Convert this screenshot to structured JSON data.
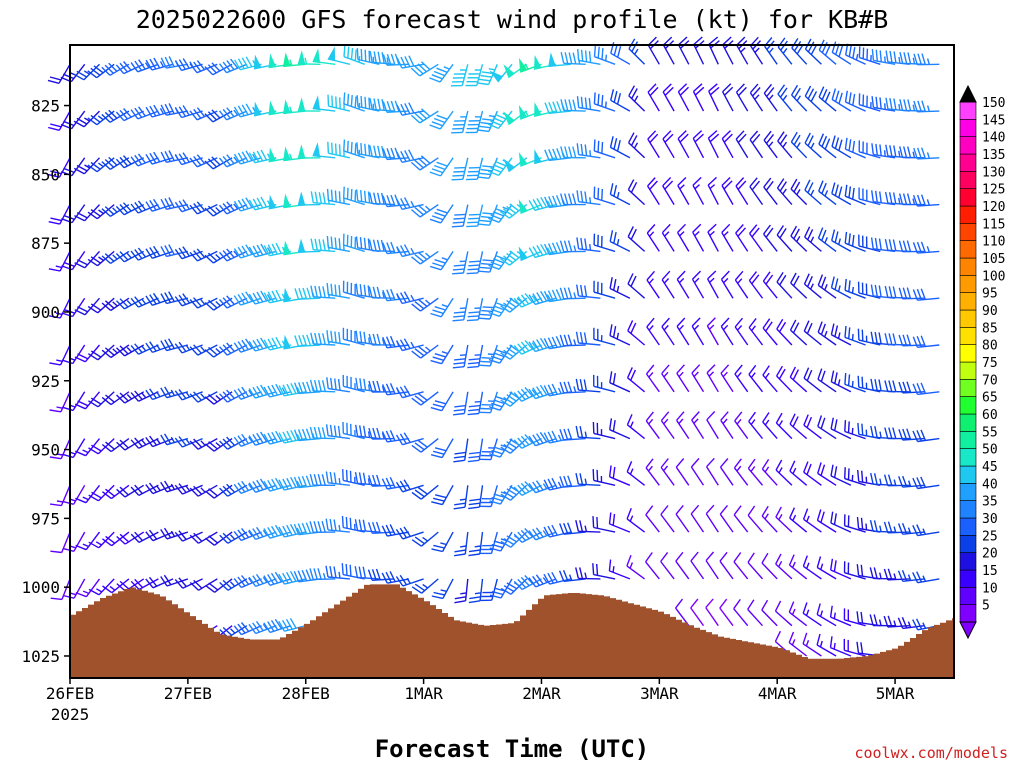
{
  "chart_data": {
    "type": "wind_barb_time_height",
    "title": "2025022600 GFS forecast wind profile (kt) for KB#B",
    "xlabel": "Forecast Time (UTC)",
    "credit": "coolwx.com/models",
    "x_ticks": [
      {
        "label": "26FEB",
        "sublabel": "2025",
        "day": 0
      },
      {
        "label": "27FEB",
        "sublabel": "",
        "day": 1
      },
      {
        "label": "28FEB",
        "sublabel": "",
        "day": 2
      },
      {
        "label": "1MAR",
        "sublabel": "",
        "day": 3
      },
      {
        "label": "2MAR",
        "sublabel": "",
        "day": 4
      },
      {
        "label": "3MAR",
        "sublabel": "",
        "day": 5
      },
      {
        "label": "4MAR",
        "sublabel": "",
        "day": 6
      },
      {
        "label": "5MAR",
        "sublabel": "",
        "day": 7
      }
    ],
    "xlim_days": [
      0,
      7.5
    ],
    "y_ticks": [
      "825",
      "850",
      "875",
      "900",
      "925",
      "950",
      "975",
      "1000",
      "1025"
    ],
    "ylim_hpa": [
      803,
      1033
    ],
    "colorbar": {
      "levels": [
        "5",
        "10",
        "15",
        "20",
        "25",
        "30",
        "35",
        "40",
        "45",
        "50",
        "55",
        "60",
        "65",
        "70",
        "75",
        "80",
        "85",
        "90",
        "95",
        "100",
        "105",
        "110",
        "115",
        "120",
        "125",
        "130",
        "135",
        "140",
        "145",
        "150"
      ],
      "colors": [
        "#8000ff",
        "#6000ff",
        "#3a00ff",
        "#1e10e0",
        "#0b40e8",
        "#1a60ff",
        "#1f82ff",
        "#1fa0ff",
        "#1ec8f0",
        "#18e8c8",
        "#10f0a0",
        "#10f070",
        "#20ff30",
        "#70ff20",
        "#c0ff10",
        "#ffff00",
        "#ffe000",
        "#ffc800",
        "#ffb000",
        "#ff9a00",
        "#ff8400",
        "#ff6a00",
        "#ff4400",
        "#ff1e00",
        "#ff0030",
        "#ff0060",
        "#ff0090",
        "#ff00c0",
        "#ff00e6",
        "#ff40ff"
      ]
    },
    "surface_pressure_hpa": {
      "times_days": [
        0,
        0.25,
        0.5,
        0.75,
        1,
        1.25,
        1.5,
        1.75,
        2,
        2.25,
        2.5,
        2.75,
        3,
        3.25,
        3.5,
        3.75,
        4,
        4.25,
        4.5,
        4.75,
        5,
        5.25,
        5.5,
        5.75,
        6,
        6.25,
        6.5,
        6.75,
        7,
        7.25,
        7.5
      ],
      "values": [
        1010,
        1004,
        1000,
        1003,
        1010,
        1017,
        1019,
        1019,
        1013,
        1006,
        999,
        999,
        1005,
        1012,
        1014,
        1013,
        1003,
        1002,
        1003,
        1006,
        1009,
        1014,
        1018,
        1020,
        1022,
        1026,
        1026,
        1025,
        1022,
        1015,
        1011
      ]
    },
    "wind_levels_hpa": [
      810,
      827,
      844,
      861,
      878,
      895,
      912,
      929,
      946,
      963,
      980,
      997,
      1014,
      1025
    ],
    "wind_times_days": [
      0,
      0.125,
      0.25,
      0.375,
      0.5,
      0.625,
      0.75,
      0.875,
      1,
      1.125,
      1.25,
      1.375,
      1.5,
      1.625,
      1.75,
      1.875,
      2,
      2.125,
      2.25,
      2.375,
      2.5,
      2.625,
      2.75,
      2.875,
      3,
      3.125,
      3.25,
      3.375,
      3.5,
      3.625,
      3.75,
      3.875,
      4,
      4.125,
      4.25,
      4.375,
      4.5,
      4.625,
      4.75,
      4.875,
      5,
      5.125,
      5.25,
      5.375,
      5.5,
      5.625,
      5.75,
      5.875,
      6,
      6.125,
      6.25,
      6.375,
      6.5,
      6.625,
      6.75,
      6.875,
      7,
      7.125,
      7.25,
      7.375
    ],
    "wind_time_nodes_days": [
      0,
      0.5,
      1,
      1.4,
      1.6,
      2,
      2.5,
      3,
      3.4,
      3.6,
      4,
      4.5,
      4.75,
      5,
      5.5,
      6,
      6.5,
      7,
      7.5
    ],
    "wind_dir_nodes_deg": [
      210,
      240,
      260,
      240,
      255,
      265,
      290,
      260,
      190,
      200,
      250,
      280,
      300,
      330,
      335,
      325,
      310,
      280,
      265
    ],
    "wind_speed_upper_kt": [
      20,
      30,
      35,
      30,
      45,
      55,
      45,
      40,
      45,
      45,
      55,
      40,
      30,
      20,
      20,
      25,
      30,
      35,
      38
    ],
    "wind_speed_lower_kt": [
      10,
      15,
      20,
      18,
      30,
      40,
      30,
      25,
      20,
      25,
      35,
      20,
      15,
      10,
      8,
      10,
      15,
      22,
      25
    ]
  }
}
